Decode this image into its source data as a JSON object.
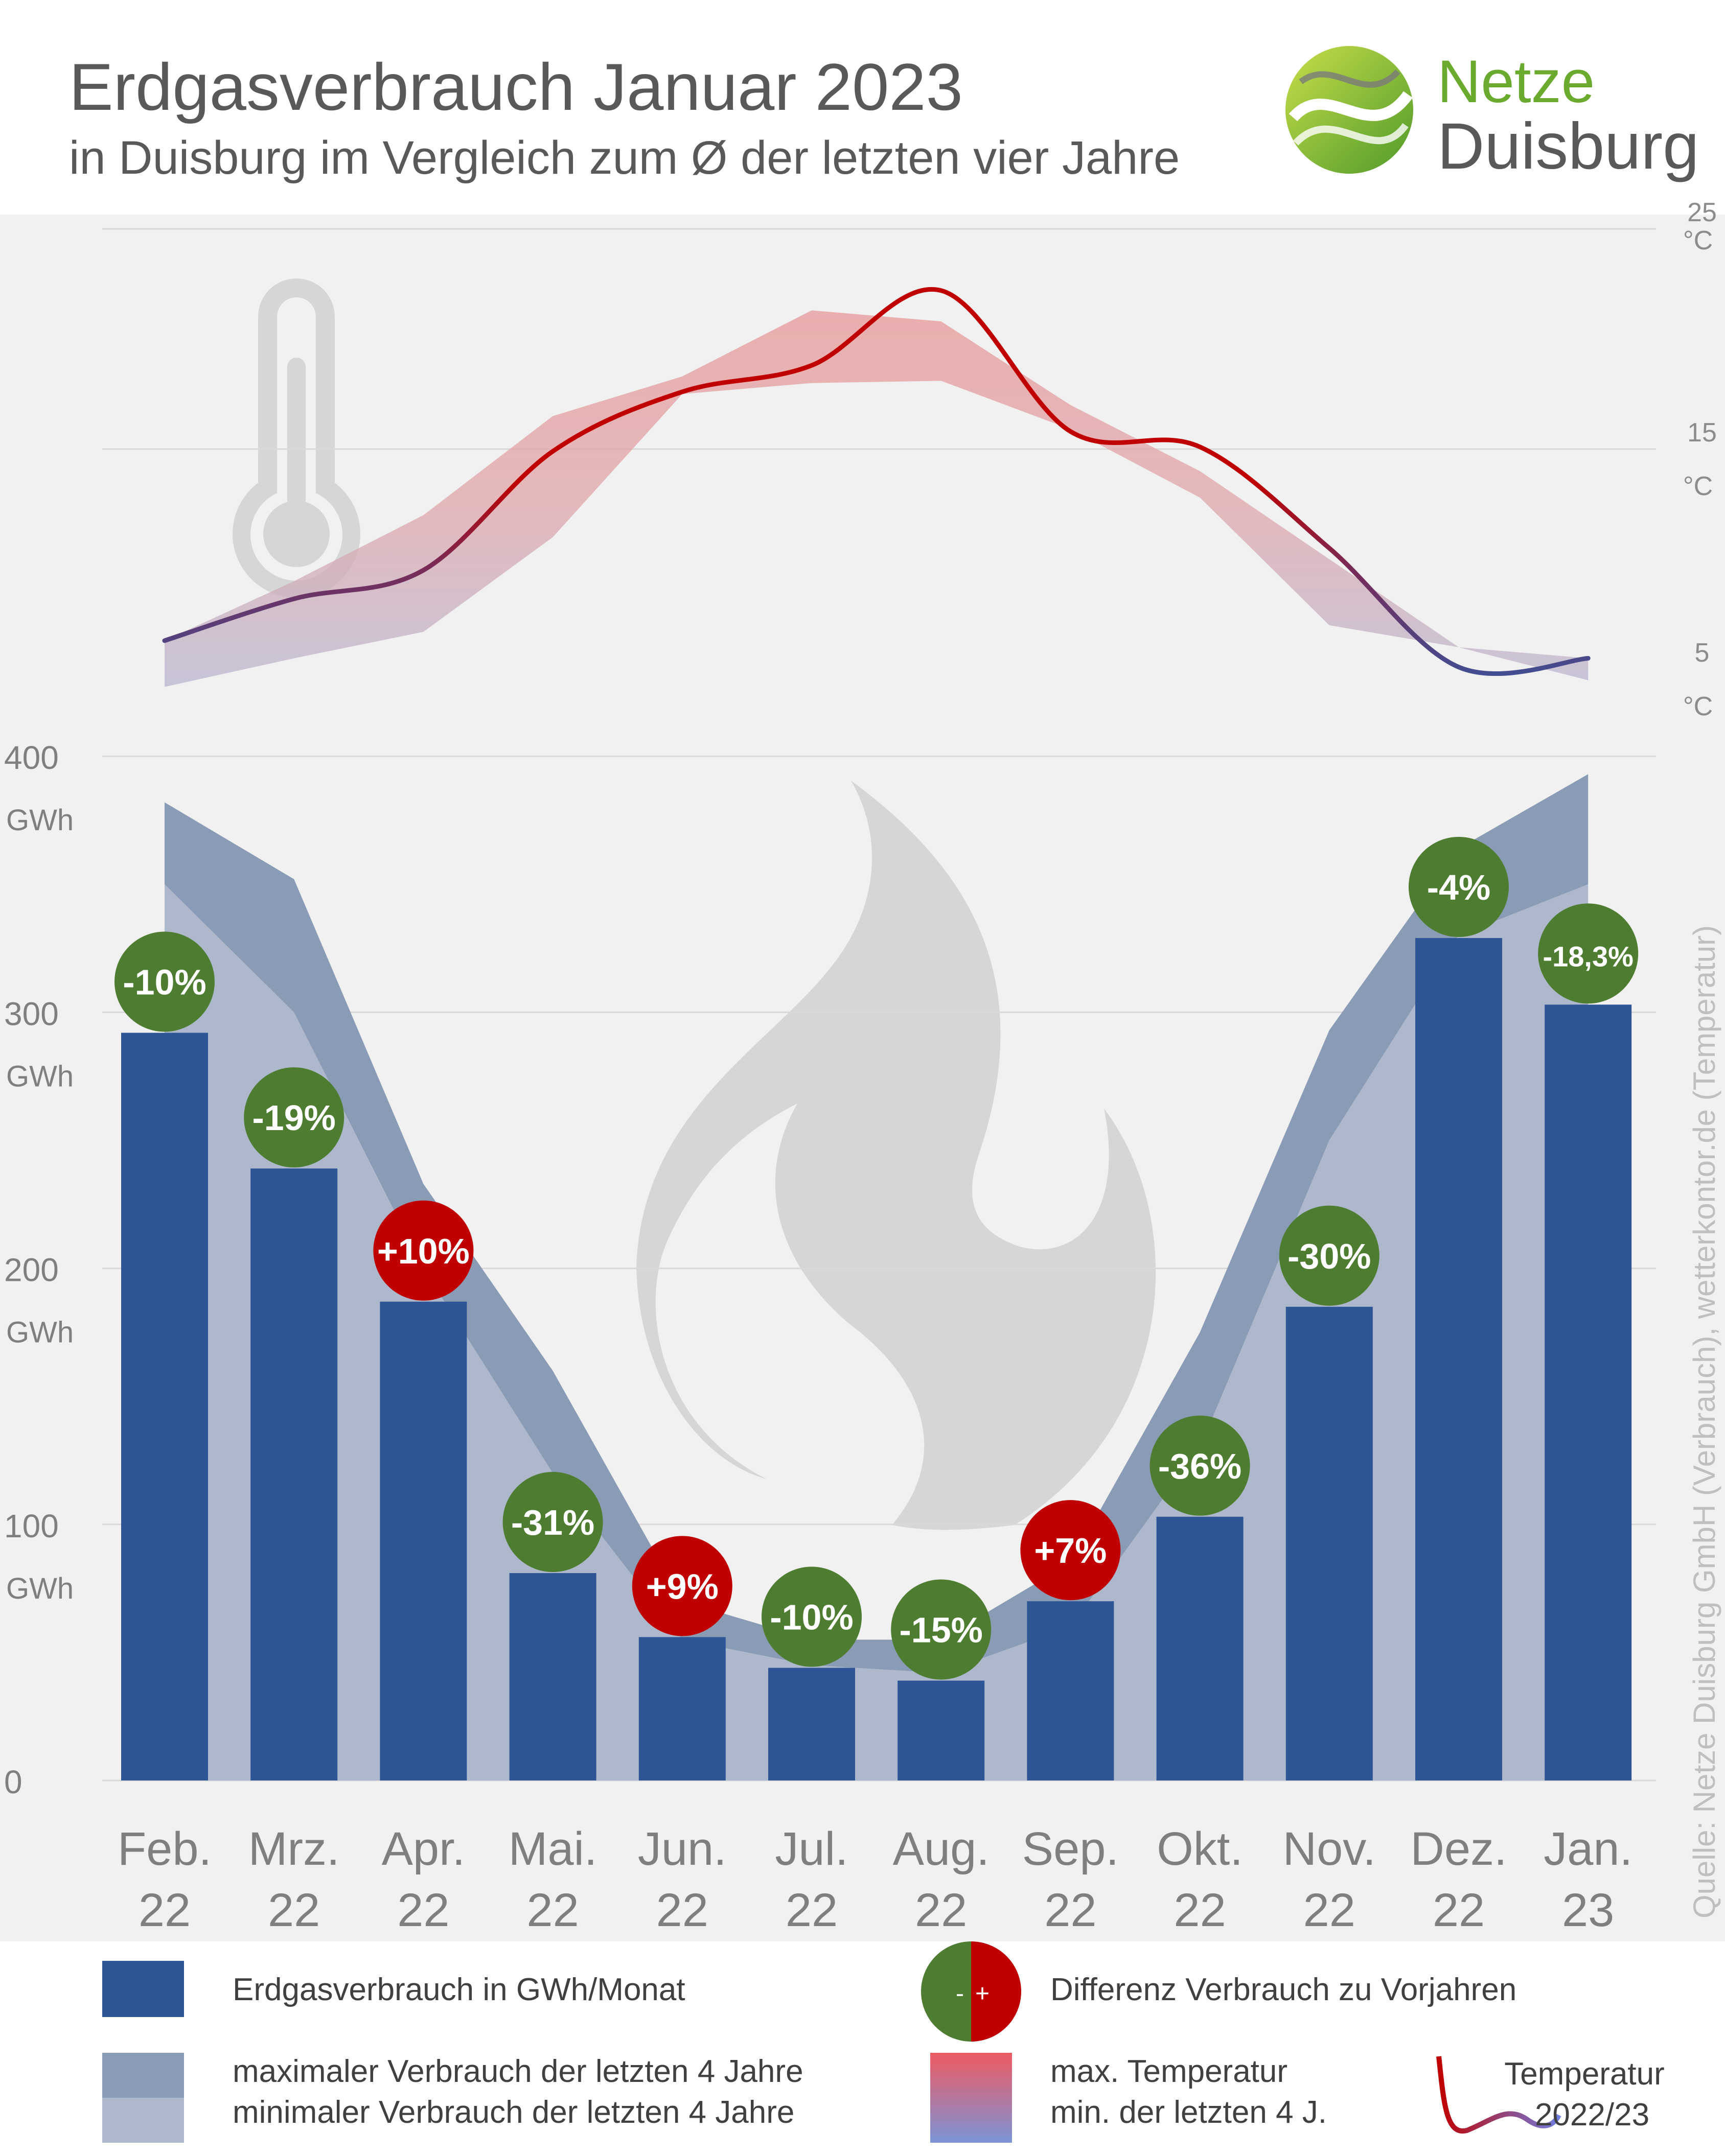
{
  "header": {
    "title": "Erdgasverbrauch Januar 2023",
    "subtitle": "in Duisburg im Vergleich zum Ø der letzten vier Jahre",
    "logo_line1": "Netze",
    "logo_line2": "Duisburg"
  },
  "source_note": "Quelle: Netze Duisburg GmbH (Verbrauch), wetterkontor.de (Temperatur)",
  "axis_units": {
    "energy": "GWh",
    "temperature": "°C"
  },
  "chart_data": {
    "type": "bar",
    "categories": [
      [
        "Feb.",
        "22"
      ],
      [
        "Mrz.",
        "22"
      ],
      [
        "Apr.",
        "22"
      ],
      [
        "Mai.",
        "22"
      ],
      [
        "Jun.",
        "22"
      ],
      [
        "Jul.",
        "22"
      ],
      [
        "Aug.",
        "22"
      ],
      [
        "Sep.",
        "22"
      ],
      [
        "Okt.",
        "22"
      ],
      [
        "Nov.",
        "22"
      ],
      [
        "Dez.",
        "22"
      ],
      [
        "Jan.",
        "23"
      ]
    ],
    "yticks": [
      0,
      100,
      200,
      300,
      400
    ],
    "ylim": [
      0,
      400
    ],
    "temp_ticks": [
      5,
      15,
      25
    ],
    "temp_lim": [
      5,
      25
    ],
    "consumption": [
      292,
      239,
      187,
      81,
      56,
      44,
      39,
      70,
      103,
      185,
      329,
      303
    ],
    "consumption_max": [
      382,
      352,
      233,
      160,
      70,
      55,
      55,
      85,
      175,
      293,
      364,
      393
    ],
    "consumption_min": [
      350,
      300,
      200,
      120,
      55,
      45,
      42,
      60,
      130,
      250,
      330,
      350
    ],
    "difference": [
      "-10%",
      "-19%",
      "+10%",
      "-31%",
      "+9%",
      "-10%",
      "-15%",
      "+7%",
      "-36%",
      "-30%",
      "-4%",
      "-18,3%"
    ],
    "difference_sign": [
      "neg",
      "neg",
      "pos",
      "neg",
      "pos",
      "neg",
      "neg",
      "pos",
      "neg",
      "neg",
      "neg",
      "neg"
    ],
    "temperature": [
      6.3,
      8.2,
      9.5,
      14.9,
      17.6,
      18.8,
      22.2,
      15.8,
      15.1,
      10.5,
      5.1,
      5.5
    ],
    "temperature_max": [
      6.3,
      9.0,
      12.0,
      16.5,
      18.3,
      21.3,
      20.8,
      17.0,
      14.0,
      10.0,
      6.0,
      5.5
    ],
    "temperature_min": [
      4.2,
      5.5,
      6.7,
      11.0,
      17.5,
      18.0,
      18.1,
      15.9,
      12.8,
      7.0,
      6.0,
      4.5
    ],
    "colors": {
      "bar": "#2e5596",
      "band_max": "#8a9bb5",
      "band_min": "#adb8cc",
      "positive": "#c00000",
      "negative": "#4e7d32",
      "temp_warm": "#c00000",
      "temp_cold": "#2e5aa8"
    }
  },
  "legend": {
    "consumption": "Erdgasverbrauch in GWh/Monat",
    "difference": "Differenz Verbrauch zu Vorjahren",
    "diff_minus": "-",
    "diff_plus": "+",
    "max_line": "maximaler Verbrauch der letzten 4 Jahre",
    "min_line": "minimaler  Verbrauch der letzten 4 Jahre",
    "temp_max": "max. Temperatur",
    "temp_min": "min.   der letzten 4 J.",
    "temp_line1": "Temperatur",
    "temp_line2": "2022/23"
  }
}
